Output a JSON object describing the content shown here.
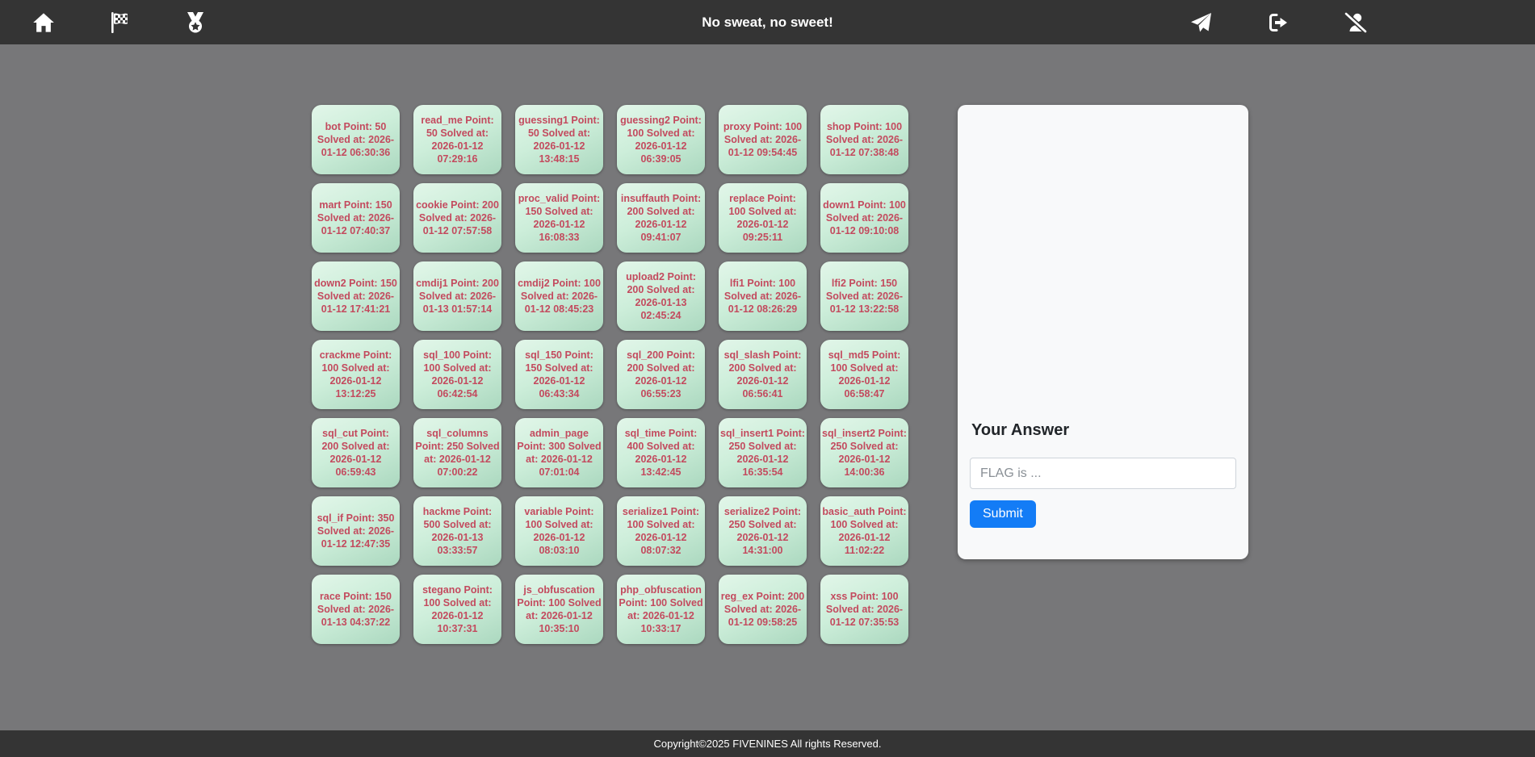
{
  "navbar": {
    "title": "No sweat, no sweet!",
    "icons_left": [
      "home-icon",
      "checkered-flag-icon",
      "medal-icon"
    ],
    "icons_right": [
      "paper-plane-icon",
      "logout-icon",
      "user-slash-icon"
    ]
  },
  "challenges": [
    {
      "name": "bot",
      "point": 50,
      "solved_at": "2026-01-12 06:30:36",
      "text": "bot Point: 50 Solved at: 2026-01-12 06:30:36"
    },
    {
      "name": "read_me",
      "point": 50,
      "solved_at": "2026-01-12 07:29:16",
      "text": "read_me Point: 50 Solved at: 2026-01-12 07:29:16"
    },
    {
      "name": "guessing1",
      "point": 50,
      "solved_at": "2026-01-12 13:48:15",
      "text": "guessing1 Point: 50 Solved at: 2026-01-12 13:48:15"
    },
    {
      "name": "guessing2",
      "point": 100,
      "solved_at": "2026-01-12 06:39:05",
      "text": "guessing2 Point: 100 Solved at: 2026-01-12 06:39:05"
    },
    {
      "name": "proxy",
      "point": 100,
      "solved_at": "2026-01-12 09:54:45",
      "text": "proxy Point: 100 Solved at: 2026-01-12 09:54:45"
    },
    {
      "name": "shop",
      "point": 100,
      "solved_at": "2026-01-12 07:38:48",
      "text": "shop Point: 100 Solved at: 2026-01-12 07:38:48"
    },
    {
      "name": "mart",
      "point": 150,
      "solved_at": "2026-01-12 07:40:37",
      "text": "mart Point: 150 Solved at: 2026-01-12 07:40:37"
    },
    {
      "name": "cookie",
      "point": 200,
      "solved_at": "2026-01-12 07:57:58",
      "text": "cookie Point: 200 Solved at: 2026-01-12 07:57:58"
    },
    {
      "name": "proc_valid",
      "point": 150,
      "solved_at": "2026-01-12 16:08:33",
      "text": "proc_valid Point: 150 Solved at: 2026-01-12 16:08:33"
    },
    {
      "name": "insuffauth",
      "point": 200,
      "solved_at": "2026-01-12 09:41:07",
      "text": "insuffauth Point: 200 Solved at: 2026-01-12 09:41:07"
    },
    {
      "name": "replace",
      "point": 100,
      "solved_at": "2026-01-12 09:25:11",
      "text": "replace Point: 100 Solved at: 2026-01-12 09:25:11"
    },
    {
      "name": "down1",
      "point": 100,
      "solved_at": "2026-01-12 09:10:08",
      "text": "down1 Point: 100 Solved at: 2026-01-12 09:10:08"
    },
    {
      "name": "down2",
      "point": 150,
      "solved_at": "2026-01-12 17:41:21",
      "text": "down2 Point: 150 Solved at: 2026-01-12 17:41:21"
    },
    {
      "name": "cmdij1",
      "point": 200,
      "solved_at": "2026-01-13 01:57:14",
      "text": "cmdij1 Point: 200 Solved at: 2026-01-13 01:57:14"
    },
    {
      "name": "cmdij2",
      "point": 100,
      "solved_at": "2026-01-12 08:45:23",
      "text": "cmdij2 Point: 100 Solved at: 2026-01-12 08:45:23"
    },
    {
      "name": "upload2",
      "point": 200,
      "solved_at": "2026-01-13 02:45:24",
      "text": "upload2 Point: 200 Solved at: 2026-01-13 02:45:24"
    },
    {
      "name": "lfi1",
      "point": 100,
      "solved_at": "2026-01-12 08:26:29",
      "text": "lfi1 Point: 100 Solved at: 2026-01-12 08:26:29"
    },
    {
      "name": "lfi2",
      "point": 150,
      "solved_at": "2026-01-12 13:22:58",
      "text": "lfi2 Point: 150 Solved at: 2026-01-12 13:22:58"
    },
    {
      "name": "crackme",
      "point": 100,
      "solved_at": "2026-01-12 13:12:25",
      "text": "crackme Point: 100 Solved at: 2026-01-12 13:12:25"
    },
    {
      "name": "sql_100",
      "point": 100,
      "solved_at": "2026-01-12 06:42:54",
      "text": "sql_100 Point: 100 Solved at: 2026-01-12 06:42:54"
    },
    {
      "name": "sql_150",
      "point": 150,
      "solved_at": "2026-01-12 06:43:34",
      "text": "sql_150 Point: 150 Solved at: 2026-01-12 06:43:34"
    },
    {
      "name": "sql_200",
      "point": 200,
      "solved_at": "2026-01-12 06:55:23",
      "text": "sql_200 Point: 200 Solved at: 2026-01-12 06:55:23"
    },
    {
      "name": "sql_slash",
      "point": 200,
      "solved_at": "2026-01-12 06:56:41",
      "text": "sql_slash Point: 200 Solved at: 2026-01-12 06:56:41"
    },
    {
      "name": "sql_md5",
      "point": 100,
      "solved_at": "2026-01-12 06:58:47",
      "text": "sql_md5 Point: 100 Solved at: 2026-01-12 06:58:47"
    },
    {
      "name": "sql_cut",
      "point": 200,
      "solved_at": "2026-01-12 06:59:43",
      "text": "sql_cut Point: 200 Solved at: 2026-01-12 06:59:43"
    },
    {
      "name": "sql_columns",
      "point": 250,
      "solved_at": "2026-01-12 07:00:22",
      "text": "sql_columns Point: 250 Solved at: 2026-01-12 07:00:22"
    },
    {
      "name": "admin_page",
      "point": 300,
      "solved_at": "2026-01-12 07:01:04",
      "text": "admin_page Point: 300 Solved at: 2026-01-12 07:01:04"
    },
    {
      "name": "sql_time",
      "point": 400,
      "solved_at": "2026-01-12 13:42:45",
      "text": "sql_time Point: 400 Solved at: 2026-01-12 13:42:45"
    },
    {
      "name": "sql_insert1",
      "point": 250,
      "solved_at": "2026-01-12 16:35:54",
      "text": "sql_insert1 Point: 250 Solved at: 2026-01-12 16:35:54"
    },
    {
      "name": "sql_insert2",
      "point": 250,
      "solved_at": "2026-01-12 14:00:36",
      "text": "sql_insert2 Point: 250 Solved at: 2026-01-12 14:00:36"
    },
    {
      "name": "sql_if",
      "point": 350,
      "solved_at": "2026-01-12 12:47:35",
      "text": "sql_if Point: 350 Solved at: 2026-01-12 12:47:35"
    },
    {
      "name": "hackme",
      "point": 500,
      "solved_at": "2026-01-13 03:33:57",
      "text": "hackme Point: 500 Solved at: 2026-01-13 03:33:57"
    },
    {
      "name": "variable",
      "point": 100,
      "solved_at": "2026-01-12 08:03:10",
      "text": "variable Point: 100 Solved at: 2026-01-12 08:03:10"
    },
    {
      "name": "serialize1",
      "point": 100,
      "solved_at": "2026-01-12 08:07:32",
      "text": "serialize1 Point: 100 Solved at: 2026-01-12 08:07:32"
    },
    {
      "name": "serialize2",
      "point": 250,
      "solved_at": "2026-01-12 14:31:00",
      "text": "serialize2 Point: 250 Solved at: 2026-01-12 14:31:00"
    },
    {
      "name": "basic_auth",
      "point": 100,
      "solved_at": "2026-01-12 11:02:22",
      "text": "basic_auth Point: 100 Solved at: 2026-01-12 11:02:22"
    },
    {
      "name": "race",
      "point": 150,
      "solved_at": "2026-01-13 04:37:22",
      "text": "race Point: 150 Solved at: 2026-01-13 04:37:22"
    },
    {
      "name": "stegano",
      "point": 100,
      "solved_at": "2026-01-12 10:37:31",
      "text": "stegano Point: 100 Solved at: 2026-01-12 10:37:31"
    },
    {
      "name": "js_obfuscation",
      "point": 100,
      "solved_at": "2026-01-12 10:35:10",
      "text": "js_obfuscation Point: 100 Solved at: 2026-01-12 10:35:10"
    },
    {
      "name": "php_obfuscation",
      "point": 100,
      "solved_at": "2026-01-12 10:33:17",
      "text": "php_obfuscation Point: 100 Solved at: 2026-01-12 10:33:17"
    },
    {
      "name": "reg_ex",
      "point": 200,
      "solved_at": "2026-01-12 09:58:25",
      "text": "reg_ex Point: 200 Solved at: 2026-01-12 09:58:25"
    },
    {
      "name": "xss",
      "point": 100,
      "solved_at": "2026-01-12 07:35:53",
      "text": "xss Point: 100 Solved at: 2026-01-12 07:35:53"
    }
  ],
  "answer_panel": {
    "title": "Your Answer",
    "input_placeholder": "FLAG is ...",
    "input_value": "",
    "submit_label": "Submit"
  },
  "footer": {
    "text": "Copyright©2025 FIVENINES All rights Reserved."
  },
  "colors": {
    "navbar_bg": "#343434",
    "page_bg": "#777779",
    "card_text": "#c34a5e",
    "card_bg_light": "#e2f6e9",
    "card_bg_dark": "#abd8bf",
    "panel_bg": "#f8f9fa",
    "submit_blue": "#137cf6"
  }
}
